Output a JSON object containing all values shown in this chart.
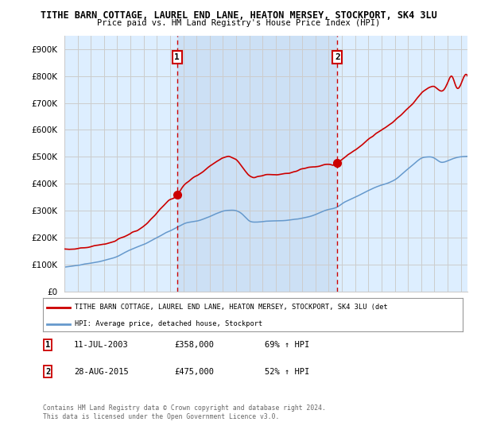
{
  "title1": "TITHE BARN COTTAGE, LAUREL END LANE, HEATON MERSEY, STOCKPORT, SK4 3LU",
  "title2": "Price paid vs. HM Land Registry's House Price Index (HPI)",
  "background_color": "#ffffff",
  "plot_bg_color": "#ddeeff",
  "plot_bg_between": "#cce0f5",
  "grid_color": "#cccccc",
  "sale1_year": 2003.53,
  "sale2_year": 2015.65,
  "sale1_price": 358000,
  "sale2_price": 475000,
  "sale1_label": "11-JUL-2003",
  "sale2_label": "28-AUG-2015",
  "sale1_pct": "69% ↑ HPI",
  "sale2_pct": "52% ↑ HPI",
  "legend_line1": "TITHE BARN COTTAGE, LAUREL END LANE, HEATON MERSEY, STOCKPORT, SK4 3LU (det",
  "legend_line2": "HPI: Average price, detached house, Stockport",
  "footer1": "Contains HM Land Registry data © Crown copyright and database right 2024.",
  "footer2": "This data is licensed under the Open Government Licence v3.0.",
  "red_color": "#cc0000",
  "blue_color": "#6699cc",
  "ylim_max": 950000,
  "yticks": [
    0,
    100000,
    200000,
    300000,
    400000,
    500000,
    600000,
    700000,
    800000,
    900000
  ],
  "xlim_min": 1995,
  "xlim_max": 2025.5
}
